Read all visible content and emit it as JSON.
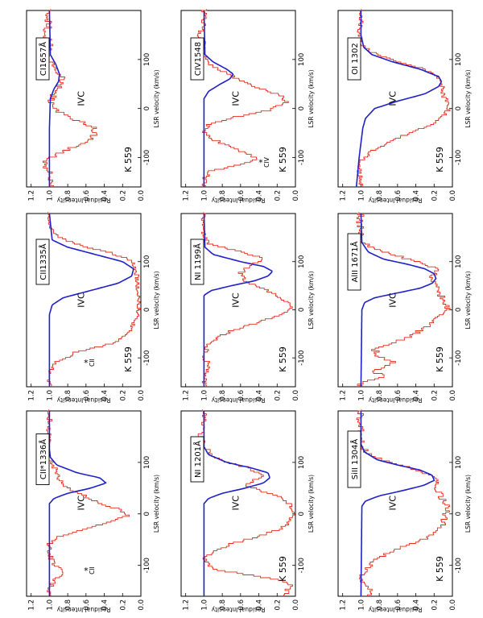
{
  "figure": {
    "colors": {
      "data": "#e0301e",
      "model": "#2020c8",
      "axis": "#000000"
    },
    "axis_text": {
      "xlabel": "LSR velocity (km/s)",
      "ylabel": "Residual Intensity",
      "xticks": [
        "-100",
        "0",
        "100"
      ],
      "yticks": [
        "0.0",
        "0.2",
        "0.4",
        "0.6",
        "0.8",
        "1.0",
        "1.2"
      ]
    }
  },
  "chart_data": [
    {
      "type": "line",
      "panel": "CI 1657",
      "label": "CI1657Å",
      "target": "K 559",
      "component": "IVC",
      "star": "",
      "title": "",
      "xlabel": "LSR velocity (km/s)",
      "ylabel": "Residual Intensity",
      "xlim": [
        -160,
        200
      ],
      "ylim": [
        0,
        1.25
      ],
      "series": [
        {
          "name": "Observed spectrum",
          "x": [
            -150,
            -130,
            -115,
            -100,
            -85,
            -70,
            -55,
            -40,
            -25,
            -10,
            0,
            15,
            30,
            45,
            55,
            60,
            70,
            85,
            100,
            115,
            130,
            150,
            170,
            190
          ],
          "y": [
            0.98,
            1.01,
            1.06,
            0.97,
            0.8,
            0.6,
            0.5,
            0.52,
            0.7,
            0.88,
            0.95,
            0.98,
            0.94,
            0.9,
            0.85,
            0.86,
            0.9,
            0.96,
            1.0,
            1.03,
            0.98,
            1.05,
            1.0,
            1.02
          ],
          "noise": 0.04
        },
        {
          "name": "Fit",
          "x": [
            -160,
            -40,
            20,
            40,
            55,
            70,
            90,
            110,
            200
          ],
          "y": [
            1.0,
            1.0,
            0.99,
            0.95,
            0.9,
            0.89,
            0.93,
            0.99,
            1.0
          ]
        }
      ]
    },
    {
      "type": "line",
      "panel": "CII 1335",
      "label": "CII1335Å",
      "target": "K 559",
      "component": "IVC",
      "star": "CII",
      "title": "",
      "xlabel": "LSR velocity (km/s)",
      "ylabel": "Residual Intensity",
      "xlim": [
        -160,
        200
      ],
      "ylim": [
        0,
        1.25
      ],
      "series": [
        {
          "name": "Observed spectrum",
          "x": [
            -150,
            -135,
            -120,
            -110,
            -100,
            -90,
            -80,
            -70,
            -60,
            -40,
            -20,
            0,
            20,
            40,
            60,
            80,
            100,
            115,
            130,
            145,
            160,
            180,
            195
          ],
          "y": [
            1.0,
            1.0,
            0.96,
            0.92,
            0.8,
            0.72,
            0.5,
            0.3,
            0.2,
            0.1,
            0.05,
            0.02,
            0.02,
            0.03,
            0.04,
            0.05,
            0.1,
            0.3,
            0.6,
            0.85,
            0.97,
            1.0,
            1.02
          ],
          "noise": 0.025
        },
        {
          "name": "Fit",
          "x": [
            -160,
            -10,
            10,
            25,
            40,
            55,
            70,
            85,
            100,
            115,
            130,
            145,
            200
          ],
          "y": [
            1.0,
            1.0,
            0.97,
            0.85,
            0.55,
            0.25,
            0.1,
            0.08,
            0.2,
            0.5,
            0.8,
            0.97,
            1.0
          ]
        }
      ]
    },
    {
      "type": "line",
      "panel": "CII* 1336",
      "label": "CII*1336Å",
      "target": "",
      "component": "IVC",
      "star": "CII",
      "title": "",
      "xlabel": "LSR velocity (km/s)",
      "ylabel": "Residual Intensity",
      "xlim": [
        -160,
        200
      ],
      "ylim": [
        0,
        1.25
      ],
      "series": [
        {
          "name": "Observed spectrum",
          "x": [
            -150,
            -130,
            -115,
            -100,
            -80,
            -60,
            -45,
            -30,
            -15,
            -5,
            5,
            20,
            40,
            55,
            65,
            75,
            90,
            105,
            120,
            140,
            160,
            180,
            195
          ],
          "y": [
            1.0,
            0.95,
            0.85,
            0.95,
            1.0,
            1.0,
            0.9,
            0.6,
            0.3,
            0.15,
            0.2,
            0.45,
            0.7,
            0.85,
            0.9,
            0.9,
            0.95,
            1.0,
            1.05,
            1.0,
            1.02,
            1.0,
            1.0
          ],
          "noise": 0.03
        },
        {
          "name": "Fit",
          "x": [
            -160,
            20,
            30,
            40,
            50,
            60,
            70,
            80,
            95,
            110,
            125,
            200
          ],
          "y": [
            1.0,
            1.0,
            0.95,
            0.8,
            0.55,
            0.38,
            0.45,
            0.7,
            0.92,
            0.99,
            1.0,
            1.0
          ]
        }
      ]
    },
    {
      "type": "line",
      "panel": "CIV 1548",
      "label": "CIV1548",
      "target": "K 559",
      "component": "IVC",
      "star": "CIV",
      "title": "",
      "xlabel": "LSR velocity (km/s)",
      "ylabel": "Residual Intensity",
      "xlim": [
        -160,
        200
      ],
      "ylim": [
        0,
        1.25
      ],
      "series": [
        {
          "name": "Observed spectrum",
          "x": [
            -150,
            -130,
            -115,
            -105,
            -95,
            -80,
            -65,
            -50,
            -35,
            -20,
            -5,
            10,
            25,
            40,
            55,
            70,
            85,
            100,
            115,
            130,
            150,
            170,
            190
          ],
          "y": [
            1.0,
            0.95,
            0.6,
            0.4,
            0.5,
            0.7,
            0.9,
            1.0,
            0.95,
            0.7,
            0.3,
            0.1,
            0.15,
            0.4,
            0.6,
            0.75,
            0.9,
            1.0,
            1.02,
            1.0,
            1.05,
            1.0,
            1.0
          ],
          "noise": 0.03
        },
        {
          "name": "Fit",
          "x": [
            -160,
            20,
            35,
            50,
            60,
            70,
            80,
            95,
            110,
            200
          ],
          "y": [
            1.0,
            1.0,
            0.95,
            0.82,
            0.72,
            0.68,
            0.75,
            0.9,
            0.99,
            1.0
          ]
        }
      ]
    },
    {
      "type": "line",
      "panel": "NI 1199",
      "label": "NI 1199Å",
      "target": "K 559",
      "component": "IVC",
      "star": "",
      "title": "",
      "xlabel": "LSR velocity (km/s)",
      "ylabel": "Residual Intensity",
      "xlim": [
        -160,
        200
      ],
      "ylim": [
        0,
        1.25
      ],
      "series": [
        {
          "name": "Observed spectrum",
          "x": [
            -150,
            -130,
            -115,
            -100,
            -90,
            -75,
            -60,
            -45,
            -30,
            -15,
            0,
            15,
            30,
            45,
            60,
            75,
            90,
            105,
            120,
            135,
            150,
            170,
            190
          ],
          "y": [
            1.0,
            0.95,
            0.95,
            1.0,
            0.98,
            0.95,
            0.85,
            0.7,
            0.45,
            0.2,
            0.05,
            0.1,
            0.2,
            0.4,
            0.55,
            0.6,
            0.5,
            0.35,
            0.6,
            0.95,
            1.0,
            1.02,
            1.0
          ],
          "noise": 0.03
        },
        {
          "name": "Fit",
          "x": [
            -160,
            30,
            40,
            50,
            60,
            70,
            80,
            90,
            100,
            115,
            130,
            200
          ],
          "y": [
            1.0,
            1.0,
            0.92,
            0.7,
            0.45,
            0.3,
            0.25,
            0.35,
            0.6,
            0.9,
            0.99,
            1.0
          ]
        }
      ]
    },
    {
      "type": "line",
      "panel": "NI 1201",
      "label": "NI 1201Å",
      "target": "K 559",
      "component": "IVC",
      "star": "",
      "title": "",
      "xlabel": "LSR velocity (km/s)",
      "ylabel": "Residual Intensity",
      "xlim": [
        -160,
        200
      ],
      "ylim": [
        0,
        1.25
      ],
      "series": [
        {
          "name": "Observed spectrum",
          "x": [
            -150,
            -140,
            -130,
            -120,
            -110,
            -100,
            -90,
            -75,
            -60,
            -45,
            -30,
            -15,
            0,
            15,
            30,
            45,
            55,
            65,
            75,
            90,
            105,
            120,
            135,
            150,
            170,
            190
          ],
          "y": [
            0.1,
            0.05,
            0.15,
            0.5,
            0.85,
            0.95,
            1.0,
            0.9,
            0.7,
            0.4,
            0.15,
            0.05,
            0.02,
            0.05,
            0.15,
            0.4,
            0.55,
            0.45,
            0.35,
            0.55,
            0.85,
            0.95,
            1.0,
            1.05,
            1.0,
            1.0
          ],
          "noise": 0.03
        },
        {
          "name": "Fit",
          "x": [
            -160,
            20,
            30,
            40,
            50,
            60,
            70,
            80,
            90,
            100,
            115,
            130,
            200
          ],
          "y": [
            1.0,
            1.0,
            0.95,
            0.8,
            0.55,
            0.35,
            0.28,
            0.3,
            0.5,
            0.75,
            0.95,
            1.0,
            1.0
          ]
        }
      ]
    },
    {
      "type": "line",
      "panel": "OI 1302",
      "label": "OI 1302",
      "target": "K 559",
      "component": "IVC",
      "star": "",
      "title": "",
      "xlabel": "LSR velocity (km/s)",
      "ylabel": "Residual Intensity",
      "xlim": [
        -160,
        200
      ],
      "ylim": [
        0,
        1.25
      ],
      "series": [
        {
          "name": "Observed spectrum",
          "x": [
            -150,
            -130,
            -110,
            -90,
            -70,
            -50,
            -35,
            -20,
            -5,
            10,
            25,
            40,
            55,
            70,
            85,
            100,
            115,
            130,
            150,
            170,
            190
          ],
          "y": [
            1.0,
            1.02,
            1.0,
            0.9,
            0.7,
            0.45,
            0.25,
            0.12,
            0.05,
            0.05,
            0.1,
            0.1,
            0.15,
            0.2,
            0.4,
            0.7,
            0.9,
            1.0,
            1.02,
            1.0,
            1.0
          ],
          "noise": 0.025
        },
        {
          "name": "Fit",
          "x": [
            -160,
            -100,
            -70,
            -40,
            -20,
            0,
            15,
            30,
            45,
            55,
            65,
            80,
            95,
            110,
            125,
            150,
            200
          ],
          "y": [
            1.05,
            1.02,
            1.0,
            0.98,
            0.95,
            0.85,
            0.6,
            0.3,
            0.15,
            0.12,
            0.15,
            0.35,
            0.65,
            0.88,
            0.97,
            1.0,
            1.0
          ]
        }
      ]
    },
    {
      "type": "line",
      "panel": "AlII 1671",
      "label": "AlII 1671Å",
      "target": "K 559",
      "component": "IVC",
      "star": "",
      "title": "",
      "xlabel": "LSR velocity (km/s)",
      "ylabel": "Residual Intensity",
      "xlim": [
        -160,
        200
      ],
      "ylim": [
        0,
        1.25
      ],
      "series": [
        {
          "name": "Observed spectrum",
          "x": [
            -150,
            -140,
            -130,
            -120,
            -110,
            -100,
            -85,
            -70,
            -55,
            -40,
            -25,
            -10,
            5,
            20,
            35,
            50,
            65,
            80,
            95,
            110,
            125,
            140,
            160,
            180,
            195
          ],
          "y": [
            1.0,
            0.7,
            0.9,
            0.75,
            0.6,
            0.8,
            0.85,
            0.65,
            0.45,
            0.3,
            0.2,
            0.1,
            0.05,
            0.1,
            0.15,
            0.2,
            0.25,
            0.15,
            0.3,
            0.6,
            0.85,
            1.0,
            1.0,
            1.02,
            1.0
          ],
          "noise": 0.04
        },
        {
          "name": "Fit",
          "x": [
            -160,
            0,
            15,
            25,
            35,
            45,
            55,
            65,
            75,
            85,
            95,
            105,
            120,
            140,
            200
          ],
          "y": [
            1.0,
            0.99,
            0.96,
            0.85,
            0.6,
            0.35,
            0.22,
            0.18,
            0.2,
            0.3,
            0.5,
            0.75,
            0.92,
            0.99,
            1.0
          ]
        }
      ]
    },
    {
      "type": "line",
      "panel": "SiII 1304",
      "label": "SiII 1304Å",
      "target": "K 559",
      "component": "IVC",
      "star": "",
      "title": "",
      "xlabel": "LSR velocity (km/s)",
      "ylabel": "Residual Intensity",
      "xlim": [
        -160,
        200
      ],
      "ylim": [
        0,
        1.25
      ],
      "series": [
        {
          "name": "Observed spectrum",
          "x": [
            -150,
            -130,
            -110,
            -90,
            -70,
            -50,
            -35,
            -20,
            -5,
            10,
            25,
            40,
            55,
            65,
            75,
            90,
            105,
            120,
            140,
            160,
            180,
            195
          ],
          "y": [
            0.9,
            1.0,
            0.95,
            0.85,
            0.6,
            0.3,
            0.15,
            0.1,
            0.08,
            0.05,
            0.1,
            0.15,
            0.2,
            0.15,
            0.25,
            0.5,
            0.8,
            0.95,
            1.0,
            1.0,
            1.02,
            1.0
          ],
          "noise": 0.035
        },
        {
          "name": "Fit",
          "x": [
            -160,
            15,
            25,
            35,
            45,
            55,
            65,
            75,
            85,
            95,
            105,
            120,
            135,
            200
          ],
          "y": [
            1.0,
            0.99,
            0.95,
            0.8,
            0.55,
            0.32,
            0.2,
            0.22,
            0.35,
            0.6,
            0.82,
            0.96,
            1.0,
            1.0
          ]
        }
      ]
    }
  ]
}
